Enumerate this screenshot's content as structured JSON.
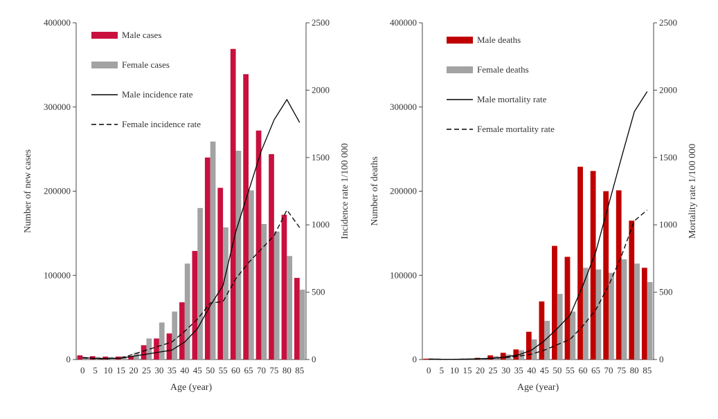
{
  "chart_data": [
    {
      "type": "bar",
      "xlabel": "Age (year)",
      "ylabel": "Number of new cases",
      "y2label": "Incidence rate 1/100 000",
      "ylim": [
        0,
        400000
      ],
      "y2lim": [
        0,
        2500
      ],
      "yticks": [
        "0",
        "100000",
        "200000",
        "300000",
        "400000"
      ],
      "y2ticks": [
        "0",
        "500",
        "1000",
        "1500",
        "2000",
        "2500"
      ],
      "categories": [
        "0",
        "5",
        "10",
        "15",
        "20",
        "25",
        "30",
        "35",
        "40",
        "45",
        "50",
        "55",
        "60",
        "65",
        "70",
        "75",
        "80",
        "85"
      ],
      "bar_series": [
        {
          "name": "Male cases",
          "color": "#c8103e",
          "values": [
            5000,
            4000,
            3500,
            3500,
            4000,
            17000,
            25000,
            31000,
            68000,
            129000,
            240000,
            204000,
            369000,
            339000,
            272000,
            244000,
            172000,
            97000
          ]
        },
        {
          "name": "Female cases",
          "color": "#a3a3a3",
          "values": [
            3000,
            3000,
            3000,
            4000,
            8000,
            25000,
            44000,
            57000,
            114000,
            180000,
            259000,
            157000,
            248000,
            201000,
            161000,
            152000,
            123000,
            83000
          ]
        }
      ],
      "line_series": [
        {
          "name": "Male incidence rate",
          "dash": "solid",
          "values": [
            15,
            8,
            8,
            10,
            25,
            40,
            55,
            70,
            130,
            230,
            400,
            550,
            950,
            1250,
            1550,
            1780,
            1930,
            1760
          ]
        },
        {
          "name": "Female incidence rate",
          "dash": "dashed",
          "values": [
            12,
            6,
            6,
            10,
            40,
            70,
            100,
            130,
            210,
            300,
            420,
            430,
            600,
            720,
            820,
            920,
            1110,
            980
          ]
        }
      ],
      "legend": {
        "position": "top-left"
      }
    },
    {
      "type": "bar",
      "xlabel": "Age (year)",
      "ylabel": "Number of deaths",
      "y2label": "Mortality rate 1/100 000",
      "ylim": [
        0,
        400000
      ],
      "y2lim": [
        0,
        2500
      ],
      "yticks": [
        "0",
        "100000",
        "200000",
        "300000",
        "400000"
      ],
      "y2ticks": [
        "0",
        "500",
        "1000",
        "1500",
        "2000",
        "2500"
      ],
      "categories": [
        "0",
        "5",
        "10",
        "15",
        "20",
        "25",
        "30",
        "35",
        "40",
        "45",
        "50",
        "55",
        "60",
        "65",
        "70",
        "75",
        "80",
        "85"
      ],
      "bar_series": [
        {
          "name": "Male deaths",
          "color": "#c00000",
          "values": [
            1000,
            800,
            800,
            1000,
            2000,
            5000,
            8000,
            12000,
            33000,
            69000,
            135000,
            122000,
            229000,
            224000,
            200000,
            201000,
            165000,
            109000
          ]
        },
        {
          "name": "Female deaths",
          "color": "#a3a3a3",
          "values": [
            800,
            600,
            600,
            800,
            1500,
            4000,
            6000,
            11000,
            24000,
            46000,
            78000,
            57000,
            109000,
            107000,
            103000,
            119000,
            114000,
            92000
          ]
        }
      ],
      "line_series": [
        {
          "name": "Male mortality rate",
          "dash": "solid",
          "values": [
            4,
            2,
            2,
            3,
            6,
            10,
            20,
            35,
            70,
            140,
            230,
            330,
            550,
            800,
            1150,
            1500,
            1840,
            1990
          ]
        },
        {
          "name": "Female mortality rate",
          "dash": "dashed",
          "values": [
            3,
            2,
            2,
            3,
            5,
            8,
            15,
            25,
            40,
            70,
            110,
            150,
            250,
            370,
            550,
            770,
            1030,
            1110
          ]
        }
      ],
      "legend": {
        "position": "top-left"
      }
    }
  ]
}
